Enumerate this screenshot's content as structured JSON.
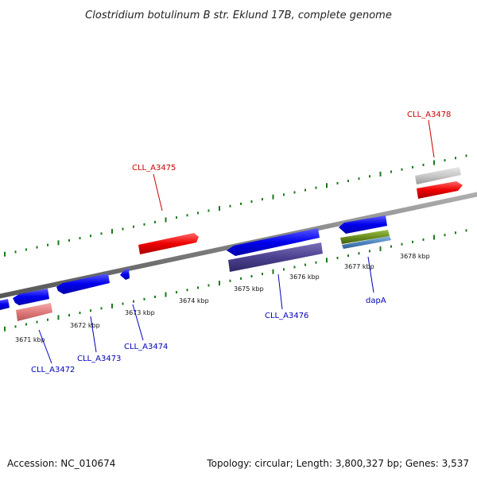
{
  "title": "Clostridium botulinum B str. Eklund 17B, complete genome",
  "footer": {
    "accession": "Accession: NC_010674",
    "summary": "Topology: circular; Length: 3,800,327 bp; Genes: 3,537"
  },
  "colors": {
    "backbone": "#7f7f7f",
    "tick": "#1a7a1a",
    "forward_label": "#cc0000",
    "reverse_label": "#0000bb",
    "forward_gene": "#ee0000",
    "reverse_gene": "#0000ee"
  },
  "ticks": [
    {
      "label": "3671 kbp"
    },
    {
      "label": "3672 kbp"
    },
    {
      "label": "3673 kbp"
    },
    {
      "label": "3674 kbp"
    },
    {
      "label": "3675 kbp"
    },
    {
      "label": "3676 kbp"
    },
    {
      "label": "3677 kbp"
    },
    {
      "label": "3678 kbp"
    }
  ],
  "labels": [
    {
      "text": "CLL_A3475",
      "strand": "forward"
    },
    {
      "text": "CLL_A3478",
      "strand": "forward"
    },
    {
      "text": "CLL_A3472",
      "strand": "reverse"
    },
    {
      "text": "CLL_A3473",
      "strand": "reverse"
    },
    {
      "text": "CLL_A3474",
      "strand": "reverse"
    },
    {
      "text": "CLL_A3476",
      "strand": "reverse"
    },
    {
      "text": "dapA",
      "strand": "reverse"
    }
  ]
}
